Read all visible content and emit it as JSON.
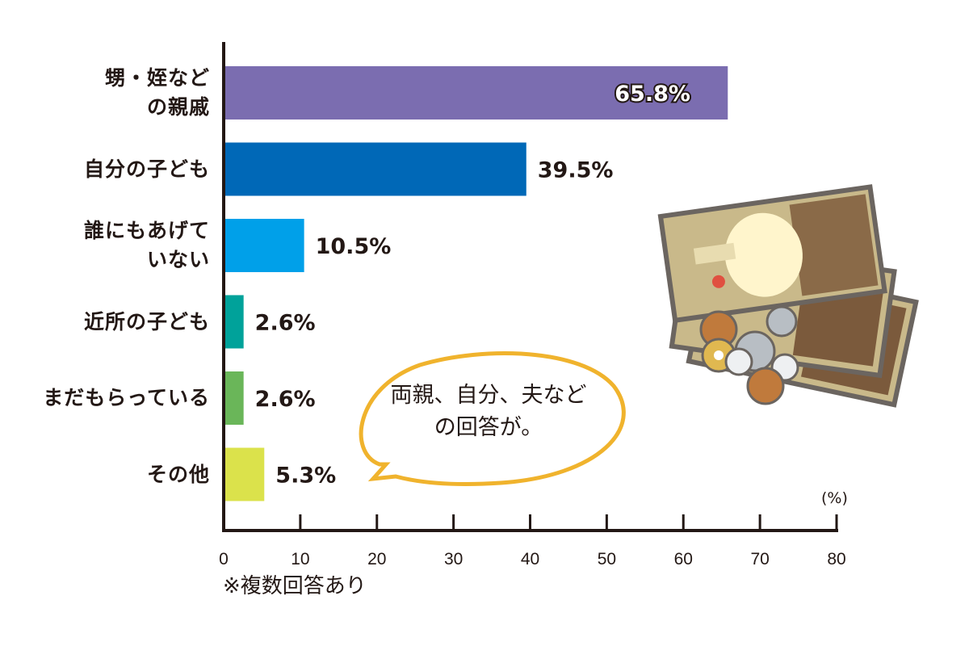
{
  "chart_data": {
    "type": "bar",
    "orientation": "horizontal",
    "categories": [
      "甥・姪など\nの親戚",
      "自分の子ども",
      "誰にもあげて\nいない",
      "近所の子ども",
      "まだもらっている",
      "その他"
    ],
    "values": [
      65.8,
      39.5,
      10.5,
      2.6,
      2.6,
      5.3
    ],
    "value_labels": [
      "65.8%",
      "39.5%",
      "10.5%",
      "2.6%",
      "2.6%",
      "5.3%"
    ],
    "colors": [
      "#7b6db0",
      "#0068b7",
      "#00a0e9",
      "#00a29a",
      "#6ab659",
      "#dbe24b"
    ],
    "xlim": [
      0,
      80
    ],
    "xticks": [
      "0",
      "10",
      "20",
      "30",
      "40",
      "50",
      "60",
      "70",
      "80"
    ],
    "xunit": "(%)",
    "note": "※複数回答あり",
    "annotation": "両親、自分、夫など\nの回答が。",
    "grid": false
  }
}
